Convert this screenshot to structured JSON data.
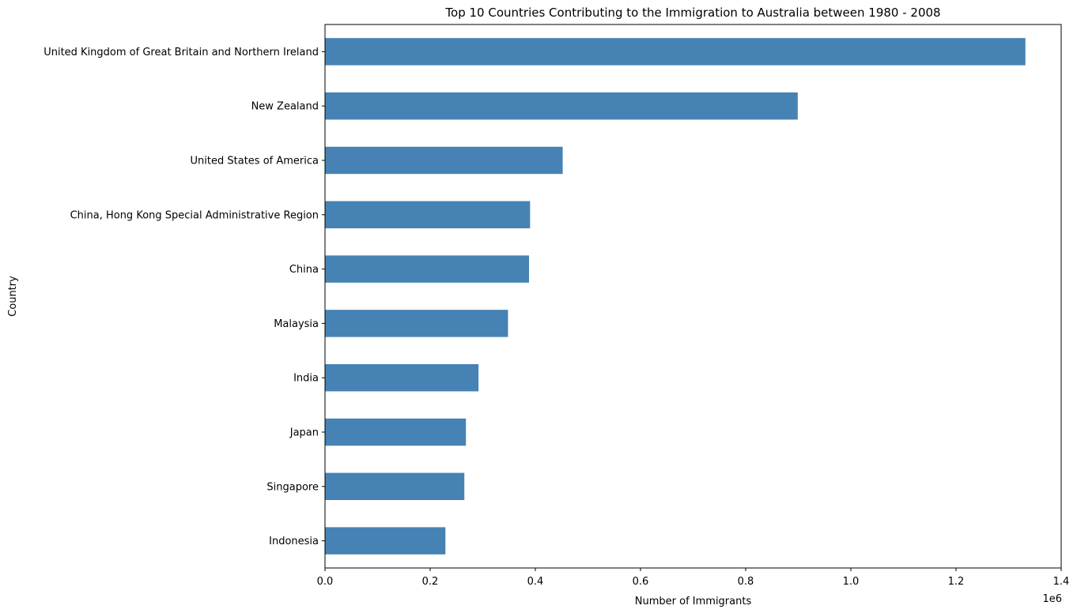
{
  "chart_data": {
    "type": "bar",
    "orientation": "horizontal",
    "title": "Top 10 Countries Contributing to the Immigration to Australia between 1980 - 2008",
    "xlabel": "Number of Immigrants",
    "ylabel": "Country",
    "x_offset_label": "1e6",
    "xlim": [
      0,
      1.4
    ],
    "x_ticks": [
      "0.0",
      "0.2",
      "0.4",
      "0.6",
      "0.8",
      "1.0",
      "1.2",
      "1.4"
    ],
    "x_tick_values": [
      0,
      0.2,
      0.4,
      0.6,
      0.8,
      1.0,
      1.2,
      1.4
    ],
    "grid": false,
    "bar_color": "#4682b4",
    "categories": [
      "United Kingdom of Great Britain and Northern Ireland",
      "New Zealand",
      "United States of America",
      "China, Hong Kong Special Administrative Region",
      "China",
      "Malaysia",
      "India",
      "Japan",
      "Singapore",
      "Indonesia"
    ],
    "values": [
      1.332,
      0.899,
      0.452,
      0.39,
      0.388,
      0.348,
      0.292,
      0.268,
      0.265,
      0.229
    ]
  }
}
